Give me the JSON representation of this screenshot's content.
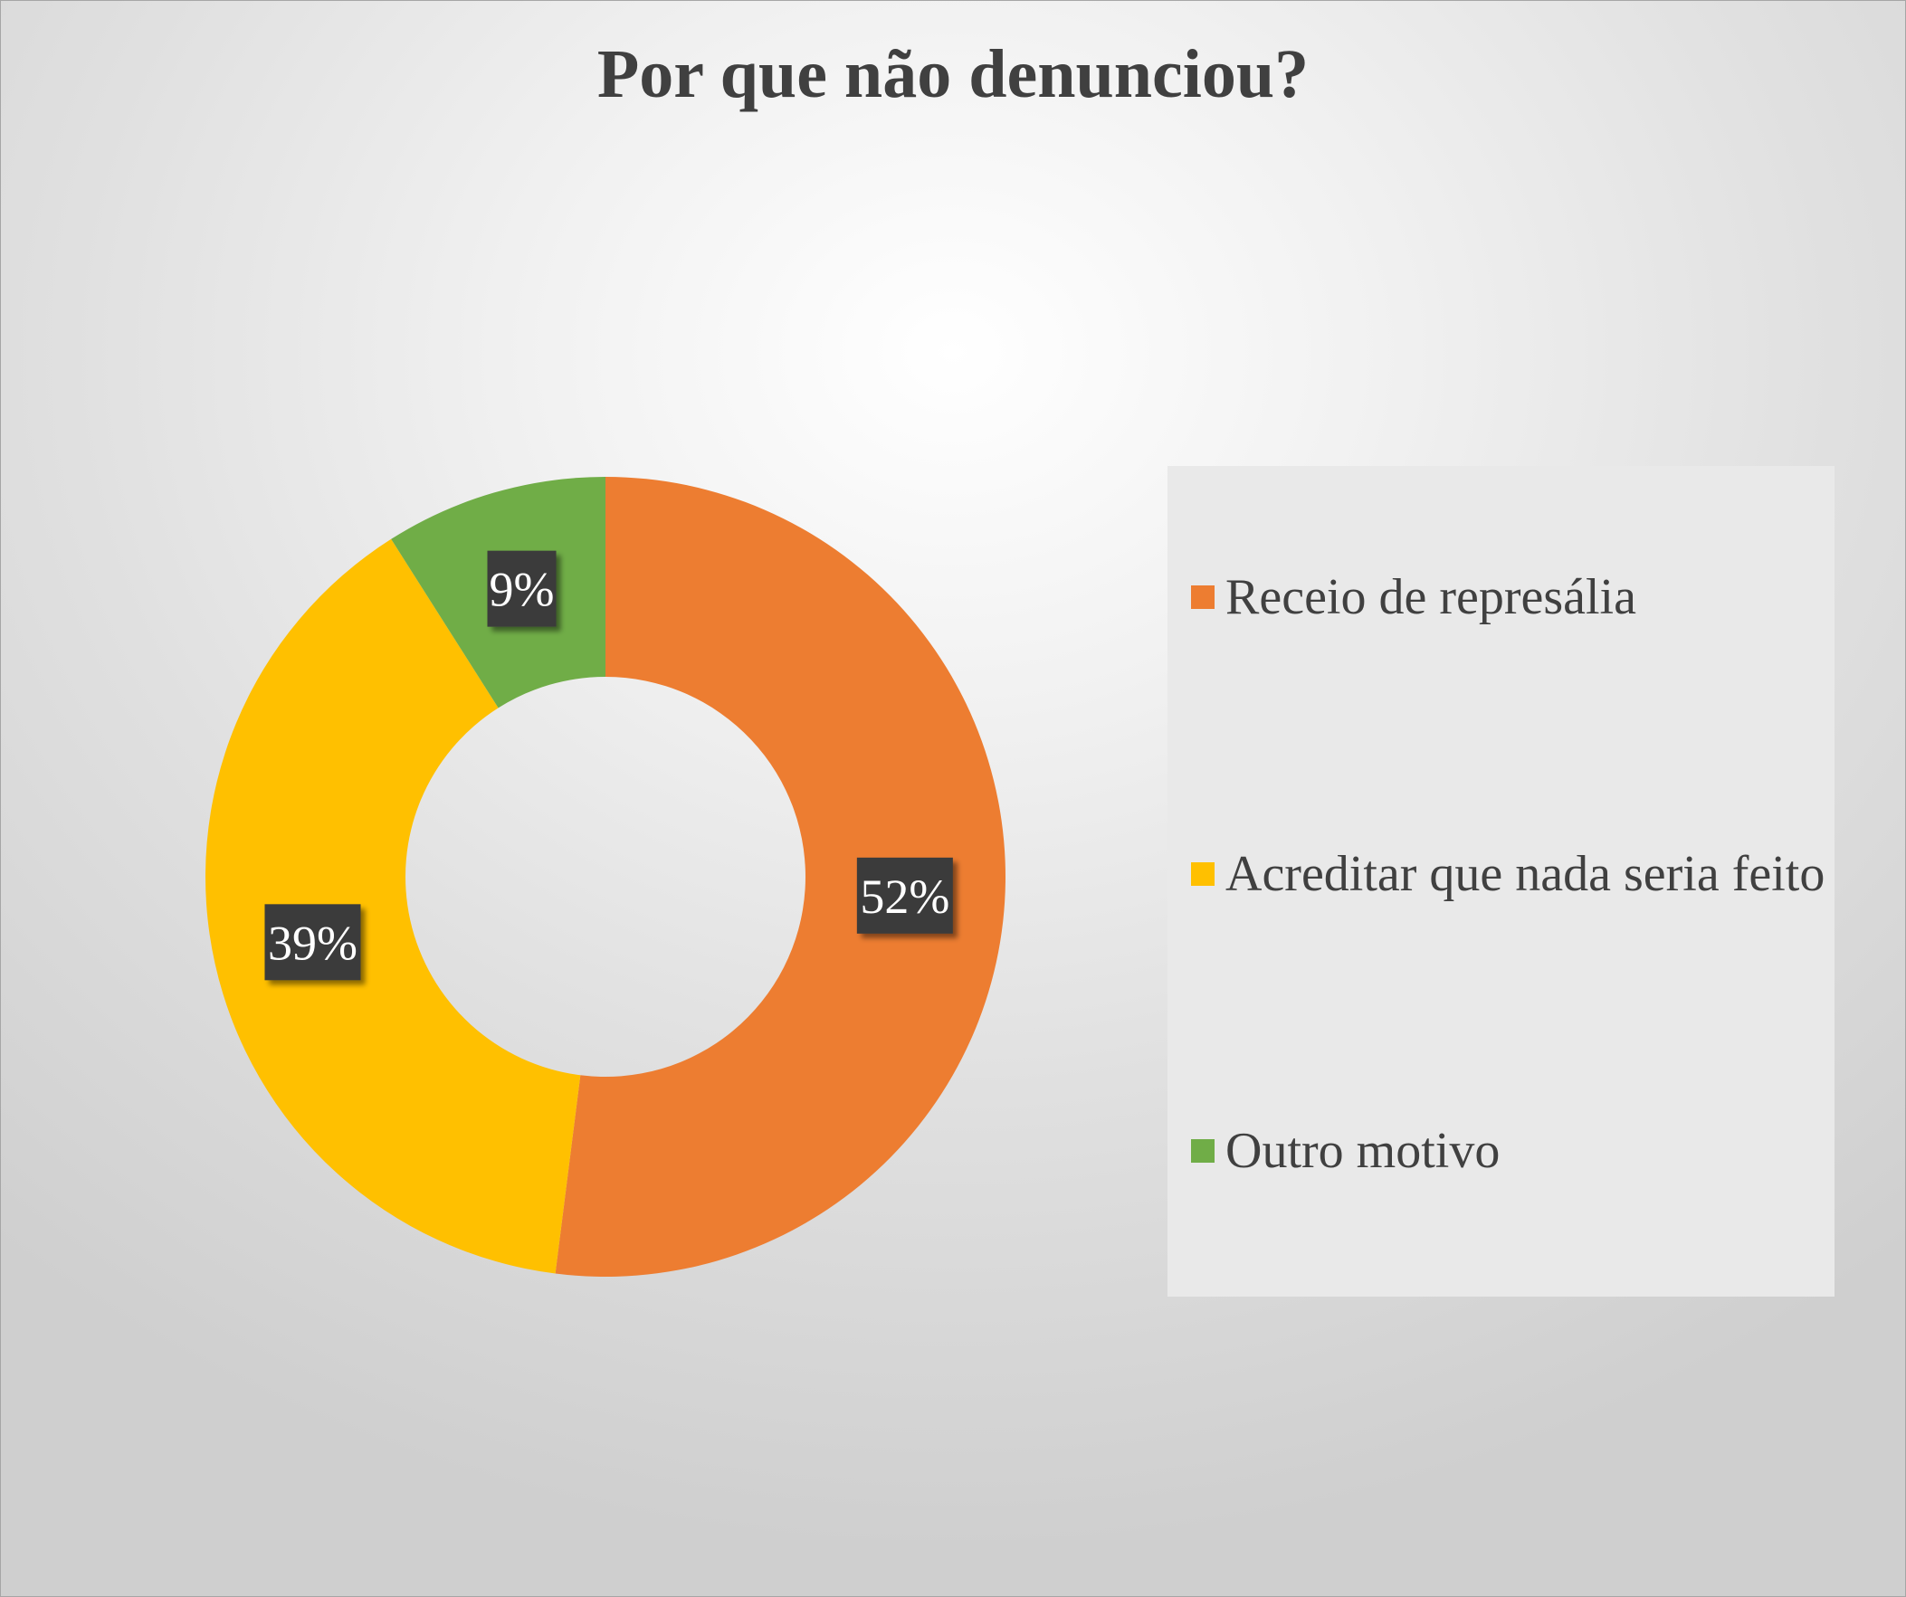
{
  "chart_data": {
    "type": "pie",
    "subtype": "doughnut",
    "title": "Por que não denunciou?",
    "categories": [
      "Receio de represália",
      "Acreditar que nada seria feito",
      "Outro motivo"
    ],
    "values": [
      52,
      39,
      9
    ],
    "value_labels": [
      "52%",
      "39%",
      "9%"
    ],
    "colors": [
      "#ED7D31",
      "#FFC000",
      "#70AD47"
    ],
    "label_background": "#3a3a3a",
    "legend_position": "right",
    "start_angle_deg": 0,
    "direction": "clockwise"
  }
}
